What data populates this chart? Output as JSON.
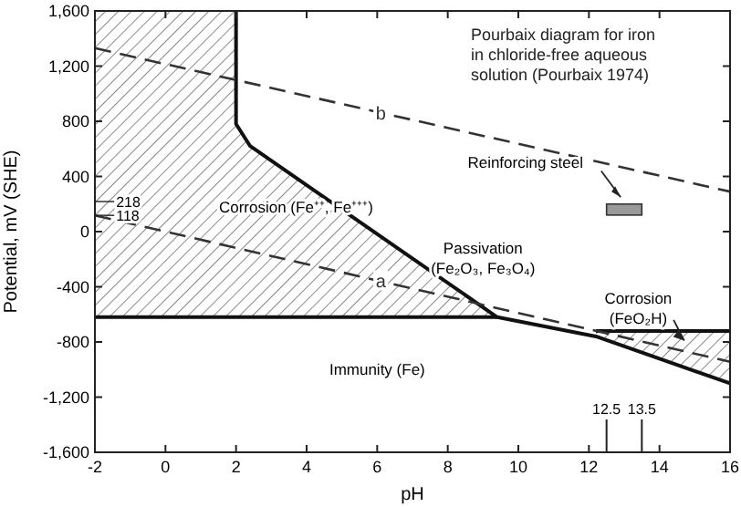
{
  "chart_data": {
    "type": "line",
    "title": "Pourbaix diagram for iron in chloride-free aqueous solution (Pourbaix 1974)",
    "xlabel": "pH",
    "ylabel": "Potential, mV (SHE)",
    "xlim": [
      -2,
      16
    ],
    "xticks": [
      -2,
      0,
      2,
      4,
      6,
      8,
      10,
      12,
      14,
      16
    ],
    "ylim": [
      -1600,
      1600
    ],
    "yticks": [
      {
        "value": -1600,
        "label": "-1,600"
      },
      {
        "value": -1200,
        "label": "-1,200"
      },
      {
        "value": -800,
        "label": "-800"
      },
      -400,
      0,
      400,
      800,
      {
        "value": 1200,
        "label": "1,200"
      },
      {
        "value": 1600,
        "label": "1,600"
      }
    ],
    "grid": false,
    "series": [
      {
        "color": "#111111",
        "x": [
          2,
          2,
          2.4,
          9.4,
          12.2,
          16
        ],
        "values": [
          1600,
          780,
          620,
          -620,
          -760,
          -1100
        ]
      },
      {
        "color": "#111111",
        "x": [
          -2,
          9.4
        ],
        "values": [
          -620,
          -620
        ]
      },
      {
        "color": "#111111",
        "x": [
          12.2,
          16
        ],
        "values": [
          -720,
          -720
        ]
      },
      {
        "name": "a",
        "color": "#333333",
        "line_style": "dashed",
        "x": [
          -2,
          16
        ],
        "values": [
          118,
          -944
        ]
      },
      {
        "name": "b",
        "color": "#333333",
        "line_style": "dashed",
        "x": [
          -2,
          16
        ],
        "values": [
          1330,
          290
        ]
      }
    ],
    "ref_lines": [
      {
        "axis": "x",
        "value": 12.5,
        "label": "12.5"
      },
      {
        "axis": "x",
        "value": 13.5,
        "label": "13.5"
      }
    ],
    "annotations": [
      "Corrosion (Fe⁺⁺, Fe⁺⁺⁺)",
      "Passivation\n(Fe₂O₃, Fe₃O₄)",
      "Immunity (Fe)",
      "Corrosion\n(FeO₂H)",
      "Reinforcing steel",
      "218",
      "118"
    ]
  }
}
